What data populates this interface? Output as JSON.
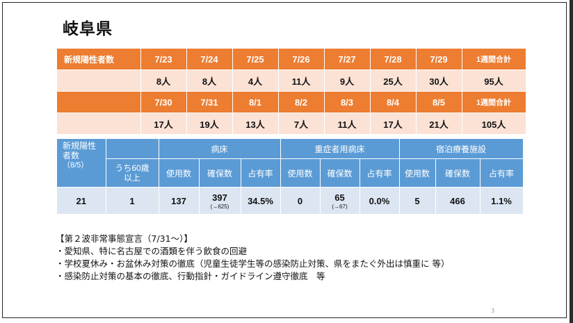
{
  "title": "岐阜県",
  "table1": {
    "row1_header": {
      "label": "新規陽性者数",
      "dates": [
        "7/23",
        "7/24",
        "7/25",
        "7/26",
        "7/27",
        "7/28",
        "7/29"
      ],
      "total_label": "1週間合計"
    },
    "row1_values": {
      "values": [
        "8人",
        "8人",
        "4人",
        "11人",
        "9人",
        "25人",
        "30人"
      ],
      "total": "95人"
    },
    "row2_header": {
      "dates": [
        "7/30",
        "7/31",
        "8/1",
        "8/2",
        "8/3",
        "8/4",
        "8/5"
      ],
      "total_label": "1週間合計"
    },
    "row2_values": {
      "values": [
        "17人",
        "19人",
        "13人",
        "7人",
        "11人",
        "17人",
        "21人"
      ],
      "total": "105人"
    }
  },
  "table2": {
    "header": {
      "new_positive_line1": "新規陽性",
      "new_positive_line2": "者数",
      "new_positive_date": "（8/5）",
      "over60_line1": "うち60歳",
      "over60_line2": "以上",
      "hospital": "病床",
      "severe": "重症者用病床",
      "lodging": "宿泊療養施設",
      "used": "使用数",
      "secured": "確保数",
      "occupancy": "占有率"
    },
    "row": {
      "new_positive": "21",
      "over60": "1",
      "hospital_used": "137",
      "hospital_secured": "397",
      "hospital_secured_note": "(→625)",
      "hospital_occupancy": "34.5%",
      "severe_used": "0",
      "severe_secured": "65",
      "severe_secured_note": "(→67)",
      "severe_occupancy": "0.0%",
      "lodging_used": "5",
      "lodging_secured": "466",
      "lodging_occupancy": "1.1%"
    }
  },
  "notes": [
    "【第２波非常事態宣言（7/31～）】",
    "・愛知県、特に名古屋での酒類を伴う飲食の回避",
    "・学校夏休み・お盆休み対策の徹底（児童生徒学生等の感染防止対策、県をまたぐ外出は慎重に 等）",
    "・感染防止対策の基本の徹底、行動指針・ガイドライン遵守徹底　等"
  ],
  "page_number": "3"
}
